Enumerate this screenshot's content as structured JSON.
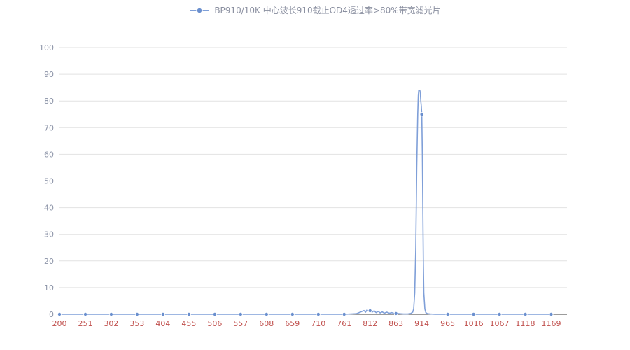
{
  "legend": {
    "label": "BP910/10K 中心波长910截止OD4透过率>80%带宽滤光片"
  },
  "chart_data": {
    "type": "line",
    "title": "BP910/10K 中心波长910截止OD4透过率>80%带宽滤光片",
    "xlabel": "",
    "ylabel": "",
    "x_axis": {
      "min": 200,
      "max": 1200,
      "tick_labels": [
        200,
        251,
        302,
        353,
        404,
        455,
        506,
        557,
        608,
        659,
        710,
        761,
        812,
        863,
        914,
        965,
        1016,
        1067,
        1118,
        1169
      ]
    },
    "y_axis": {
      "min": 0,
      "max": 100,
      "ticks": [
        0,
        10,
        20,
        30,
        40,
        50,
        60,
        70,
        80,
        90,
        100
      ]
    },
    "grid": true,
    "legend_position": "top-center",
    "series": [
      {
        "name": "BP910/10K 中心波长910截止OD4透过率>80%带宽滤光片",
        "line_points": [
          [
            200,
            0
          ],
          [
            251,
            0
          ],
          [
            302,
            0
          ],
          [
            353,
            0
          ],
          [
            404,
            0
          ],
          [
            455,
            0
          ],
          [
            506,
            0
          ],
          [
            557,
            0
          ],
          [
            608,
            0
          ],
          [
            659,
            0
          ],
          [
            710,
            0
          ],
          [
            761,
            0
          ],
          [
            785,
            0.2
          ],
          [
            790,
            0.6
          ],
          [
            795,
            1.0
          ],
          [
            800,
            1.4
          ],
          [
            803,
            0.8
          ],
          [
            806,
            1.6
          ],
          [
            810,
            1.0
          ],
          [
            813,
            1.5
          ],
          [
            816,
            0.8
          ],
          [
            820,
            1.3
          ],
          [
            824,
            0.6
          ],
          [
            828,
            1.1
          ],
          [
            832,
            0.5
          ],
          [
            836,
            0.9
          ],
          [
            840,
            0.4
          ],
          [
            845,
            0.8
          ],
          [
            850,
            0.4
          ],
          [
            855,
            0.6
          ],
          [
            860,
            0.3
          ],
          [
            865,
            0.3
          ],
          [
            870,
            0.2
          ],
          [
            878,
            0.1
          ],
          [
            886,
            0.1
          ],
          [
            892,
            0.3
          ],
          [
            896,
            0.8
          ],
          [
            898,
            2
          ],
          [
            900,
            8
          ],
          [
            902,
            25
          ],
          [
            904,
            55
          ],
          [
            906,
            75
          ],
          [
            907,
            82
          ],
          [
            908,
            84
          ],
          [
            910,
            84
          ],
          [
            911,
            83
          ],
          [
            912,
            80
          ],
          [
            913,
            78
          ],
          [
            914,
            75
          ],
          [
            915,
            60
          ],
          [
            916,
            40
          ],
          [
            917,
            20
          ],
          [
            918,
            8
          ],
          [
            920,
            2
          ],
          [
            922,
            0.6
          ],
          [
            925,
            0.2
          ],
          [
            930,
            0.1
          ],
          [
            940,
            0
          ],
          [
            965,
            0
          ],
          [
            1016,
            0
          ],
          [
            1067,
            0
          ],
          [
            1118,
            0
          ],
          [
            1169,
            0
          ]
        ],
        "marker_points": [
          [
            200,
            0
          ],
          [
            251,
            0
          ],
          [
            302,
            0
          ],
          [
            353,
            0
          ],
          [
            404,
            0
          ],
          [
            455,
            0
          ],
          [
            506,
            0
          ],
          [
            557,
            0
          ],
          [
            608,
            0
          ],
          [
            659,
            0
          ],
          [
            710,
            0
          ],
          [
            761,
            0
          ],
          [
            812,
            1.3
          ],
          [
            863,
            0.3
          ],
          [
            914,
            75
          ],
          [
            965,
            0
          ],
          [
            1016,
            0
          ],
          [
            1067,
            0
          ],
          [
            1118,
            0
          ],
          [
            1169,
            0
          ]
        ]
      }
    ],
    "colors": {
      "series": "#7f9fd8",
      "marker_fill": "#6a8fce",
      "x_labels": "#c0504d",
      "y_labels": "#8b93a7",
      "gridline": "#e2e2e2",
      "zero_axis": "#3a3a3a",
      "legend_text": "#8a8fa0"
    }
  }
}
